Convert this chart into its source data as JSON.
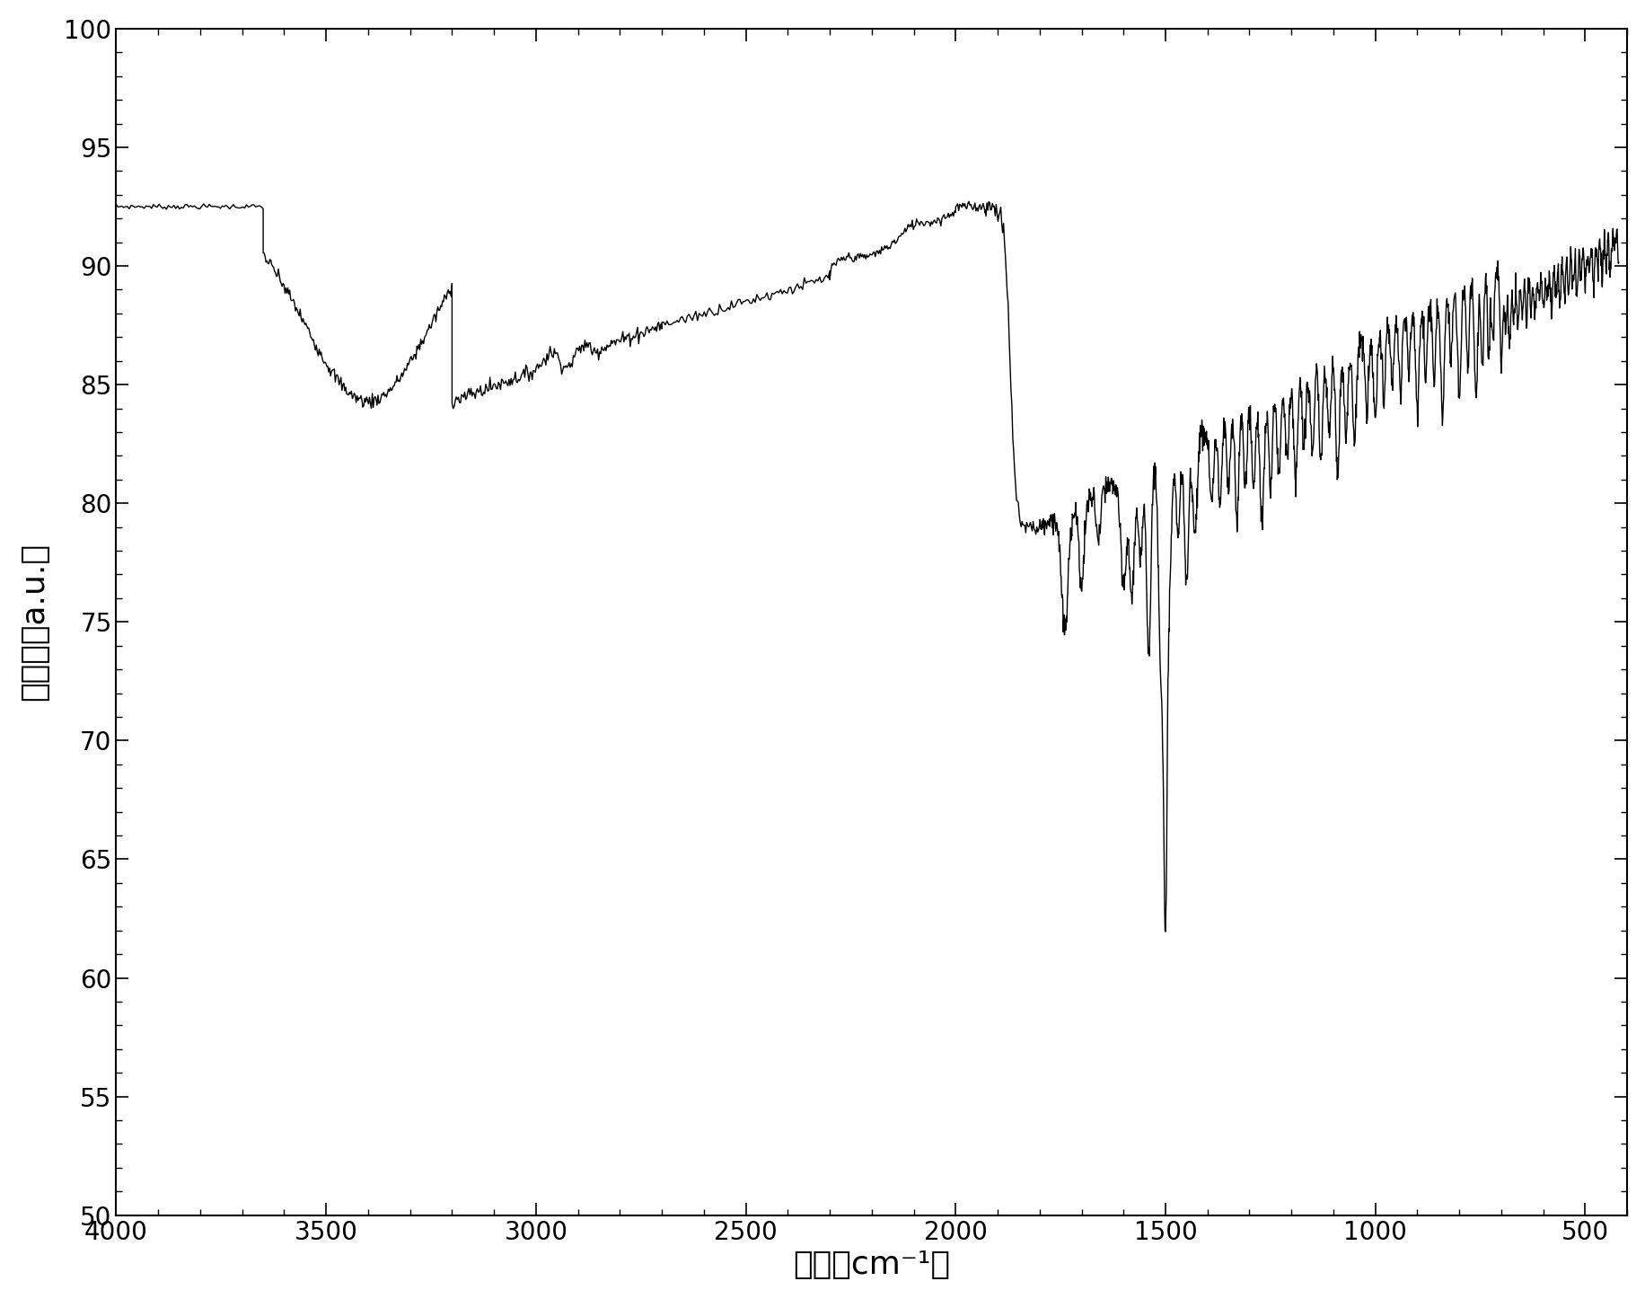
{
  "title": "",
  "xlabel": "波数（cm⁻¹）",
  "ylabel": "吸收率（a.u.）",
  "xlim": [
    4000,
    400
  ],
  "ylim": [
    50,
    100
  ],
  "yticks": [
    50,
    55,
    60,
    65,
    70,
    75,
    80,
    85,
    90,
    95,
    100
  ],
  "xticks": [
    4000,
    3500,
    3000,
    2500,
    2000,
    1500,
    1000,
    500
  ],
  "line_color": "#000000",
  "background_color": "#ffffff",
  "xlabel_fontsize": 26,
  "ylabel_fontsize": 26,
  "tick_fontsize": 20
}
